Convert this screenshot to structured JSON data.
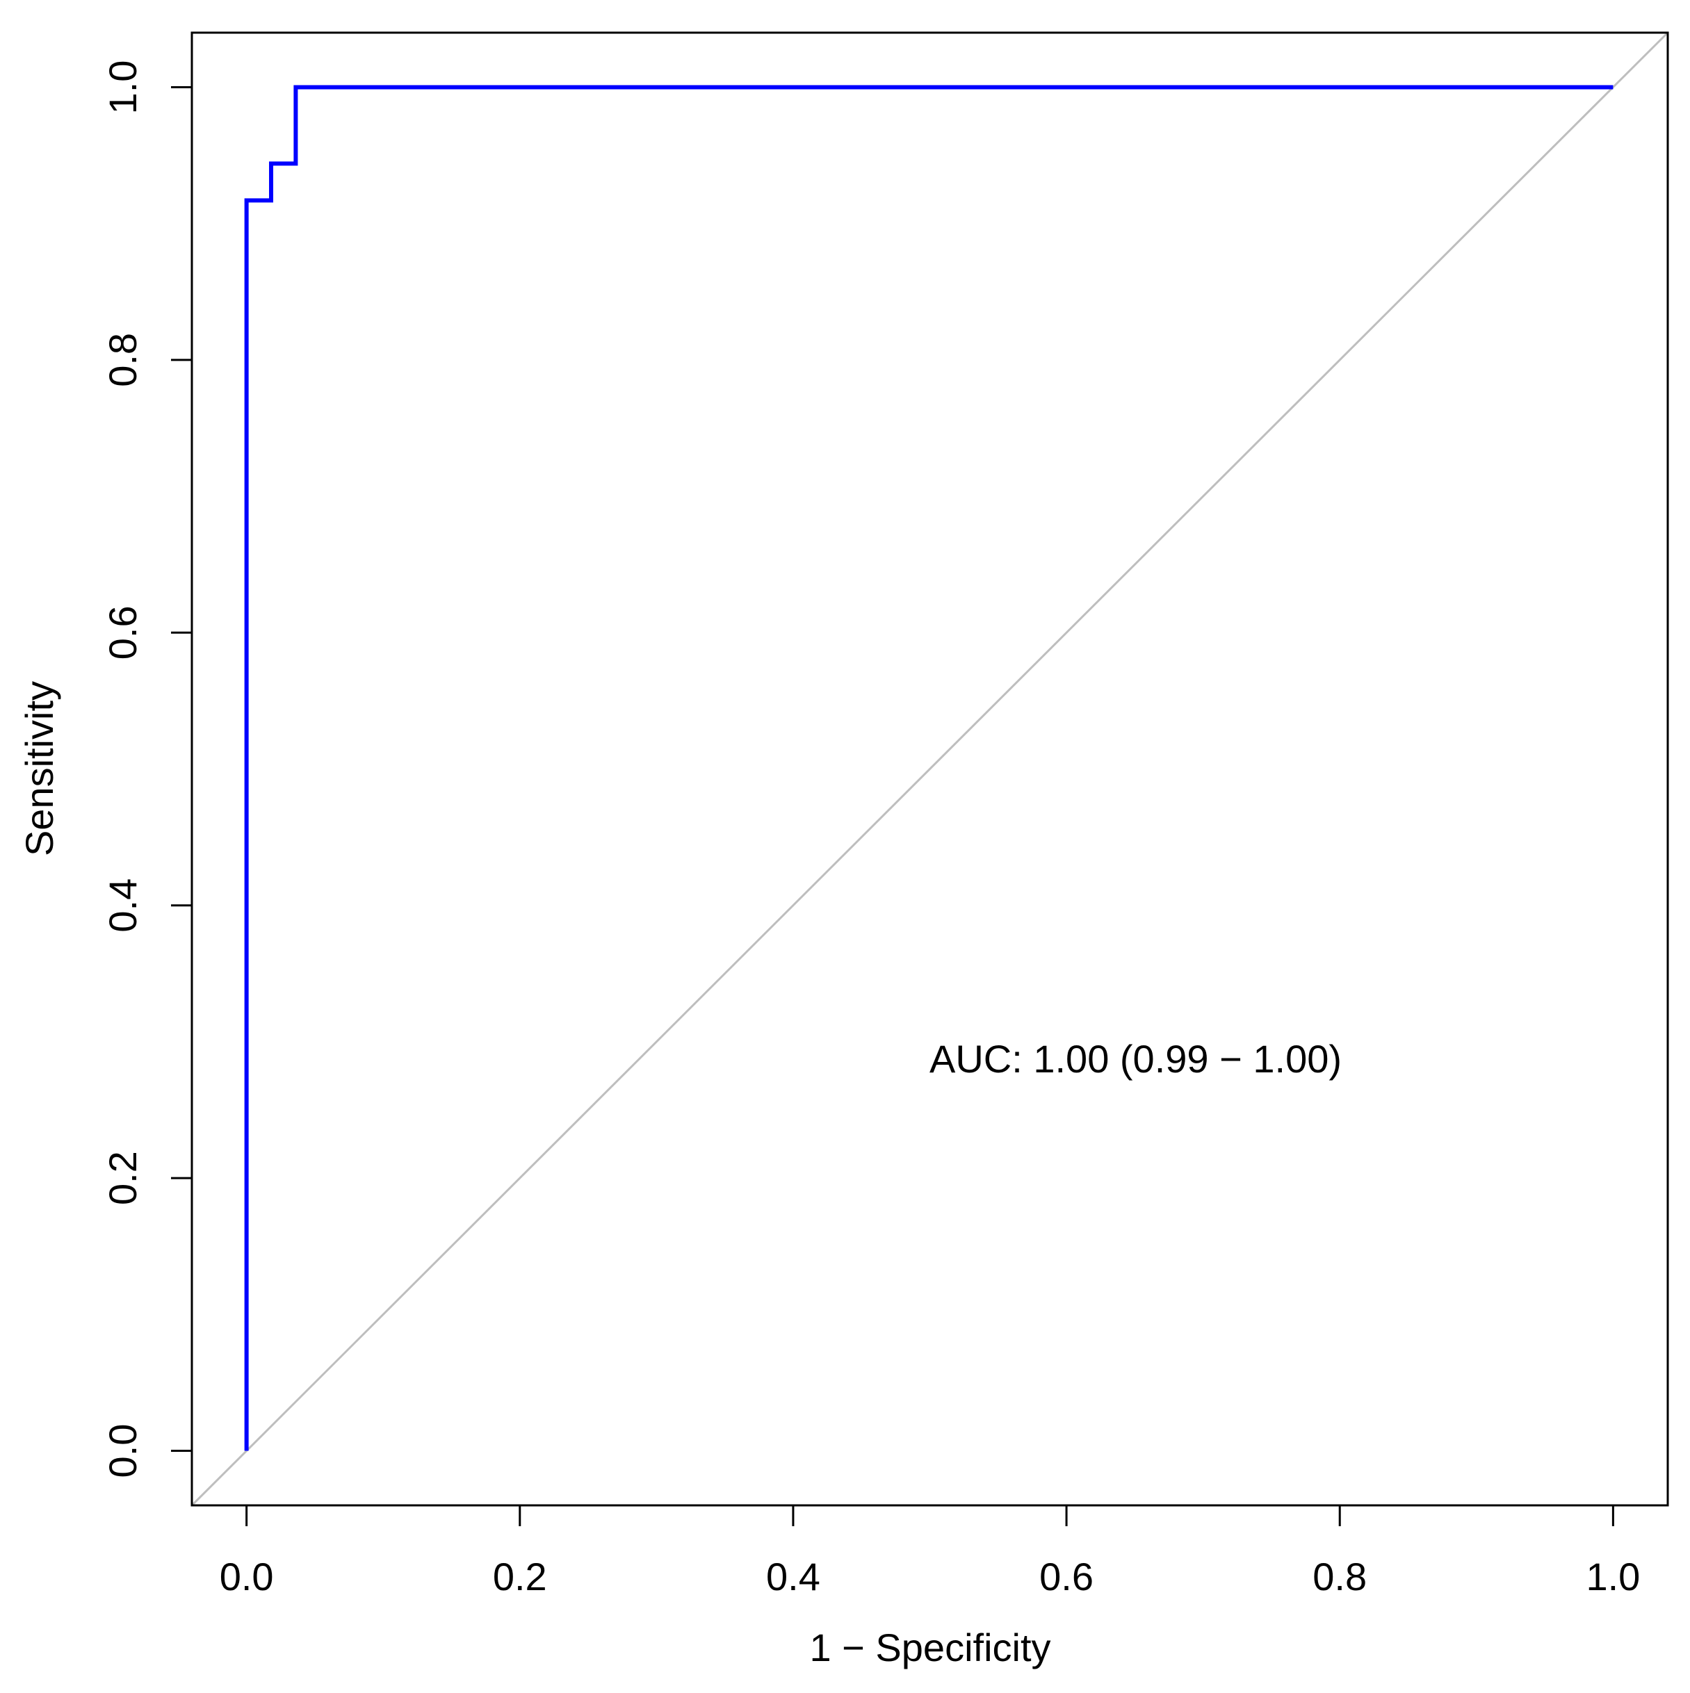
{
  "chart_data": {
    "type": "line",
    "xlabel": "1 − Specificity",
    "ylabel": "Sensitivity",
    "annotation": "AUC: 1.00 (0.99 − 1.00)",
    "x": [
      0,
      0,
      0.018,
      0.018,
      0.036,
      0.036,
      1
    ],
    "values": [
      0,
      0.917,
      0.917,
      0.944,
      0.944,
      1,
      1
    ],
    "color": "#0000ff",
    "annotation_color": "#0000ff",
    "diagonal_color": "#bebebe",
    "xlim": [
      -0.04,
      1.04
    ],
    "ylim": [
      -0.04,
      1.04
    ],
    "xticks": [
      {
        "value": 0,
        "label": "0.0"
      },
      0.2,
      0.4,
      0.6,
      0.8,
      {
        "value": 1,
        "label": "1.0"
      }
    ],
    "yticks": [
      {
        "value": 0,
        "label": "0.0"
      },
      0.2,
      0.4,
      0.6,
      0.8,
      {
        "value": 1,
        "label": "1.0"
      }
    ]
  }
}
